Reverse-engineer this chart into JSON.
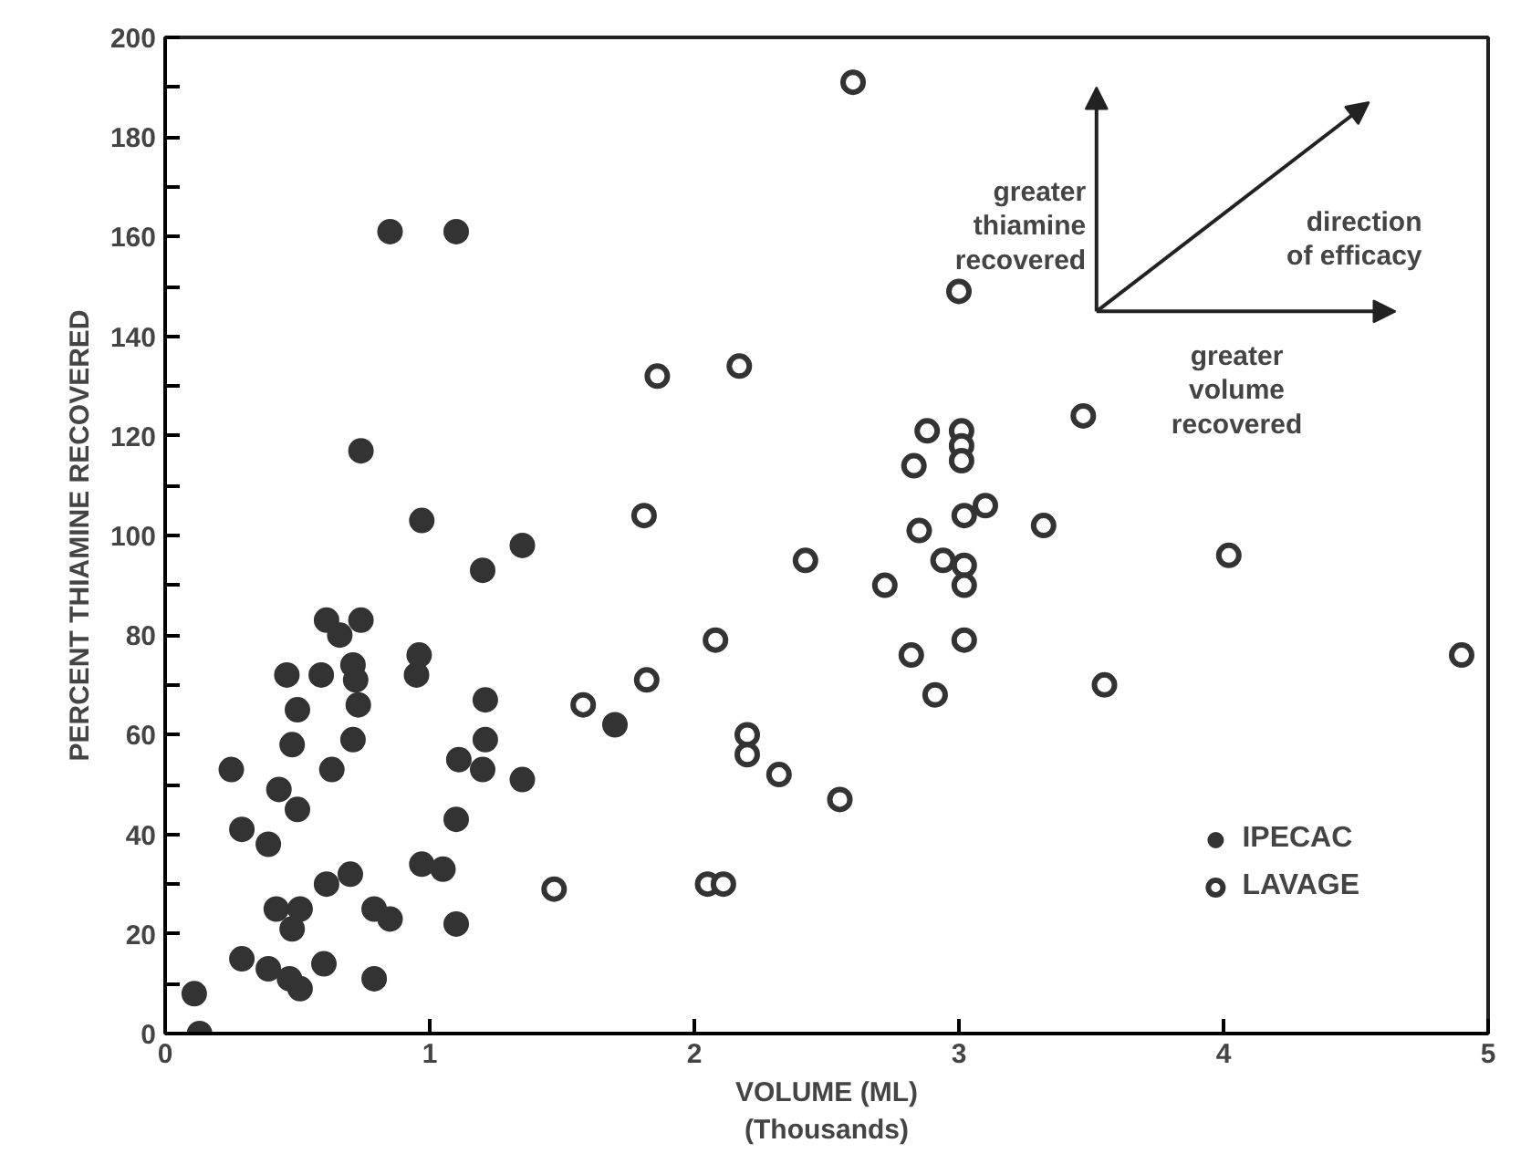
{
  "chart_data": {
    "type": "scatter",
    "xlabel": "VOLUME (ML)\n(Thousands)",
    "ylabel": "PERCENT THIAMINE RECOVERED",
    "xlim": [
      0,
      5
    ],
    "xticks": [
      0,
      1,
      2,
      3,
      4,
      5
    ],
    "ylim": [
      0,
      200
    ],
    "yticks": [
      0,
      {
        "value": 10,
        "label": null
      },
      20,
      {
        "value": 30,
        "label": null
      },
      40,
      {
        "value": 50,
        "label": null
      },
      60,
      {
        "value": 70,
        "label": null
      },
      80,
      {
        "value": 90,
        "label": null
      },
      100,
      {
        "value": 110,
        "label": null
      },
      120,
      {
        "value": 130,
        "label": null
      },
      140,
      {
        "value": 150,
        "label": null
      },
      160,
      {
        "value": 170,
        "label": null
      },
      180,
      {
        "value": 190,
        "label": null
      },
      200
    ],
    "grid": false,
    "legend": "bottom right",
    "marker": "circle",
    "annotations": [
      "greater thiamine recovered",
      "direction of efficacy",
      "greater volume recovered"
    ],
    "series": [
      {
        "name": "IPECAC",
        "color": "#333333",
        "x": [
          0.85,
          1.1,
          0.74,
          0.97,
          1.2,
          1.35,
          0.61,
          0.66,
          0.74,
          0.46,
          0.59,
          0.71,
          0.72,
          0.73,
          0.5,
          0.96,
          0.95,
          1.21,
          0.71,
          0.48,
          1.21,
          0.25,
          0.63,
          1.11,
          1.2,
          1.35,
          0.43,
          0.5,
          1.1,
          0.29,
          0.39,
          0.97,
          1.05,
          0.7,
          0.61,
          1.1,
          0.42,
          0.51,
          0.48,
          0.79,
          0.85,
          0.29,
          0.39,
          0.47,
          0.51,
          0.6,
          0.79,
          0.11,
          0.13,
          1.7
        ],
        "values": [
          161,
          161,
          117,
          103,
          93,
          98,
          83,
          80,
          83,
          72,
          72,
          74,
          71,
          66,
          65,
          76,
          72,
          67,
          59,
          58,
          59,
          53,
          53,
          55,
          53,
          51,
          49,
          45,
          43,
          41,
          38,
          34,
          33,
          32,
          30,
          22,
          25,
          25,
          21,
          25,
          23,
          15,
          13,
          11,
          9,
          14,
          11,
          8,
          0,
          62
        ]
      },
      {
        "name": "LAVAGE",
        "color": "#333333",
        "x": [
          3.0,
          1.86,
          2.17,
          1.81,
          2.42,
          2.72,
          2.08,
          1.82,
          1.58,
          2.2,
          2.2,
          2.32,
          2.55,
          2.6,
          3.47,
          2.88,
          3.01,
          3.01,
          3.01,
          2.83,
          3.1,
          3.02,
          3.32,
          2.85,
          4.02,
          2.94,
          3.02,
          3.02,
          3.02,
          2.82,
          2.91,
          3.55,
          4.9,
          1.47,
          2.05,
          2.11
        ],
        "values": [
          149,
          132,
          134,
          104,
          95,
          90,
          79,
          71,
          66,
          60,
          56,
          52,
          47,
          191,
          124,
          121,
          121,
          118,
          115,
          114,
          106,
          104,
          102,
          101,
          96,
          95,
          94,
          90,
          79,
          76,
          68,
          70,
          76,
          29,
          30,
          30
        ]
      }
    ]
  }
}
